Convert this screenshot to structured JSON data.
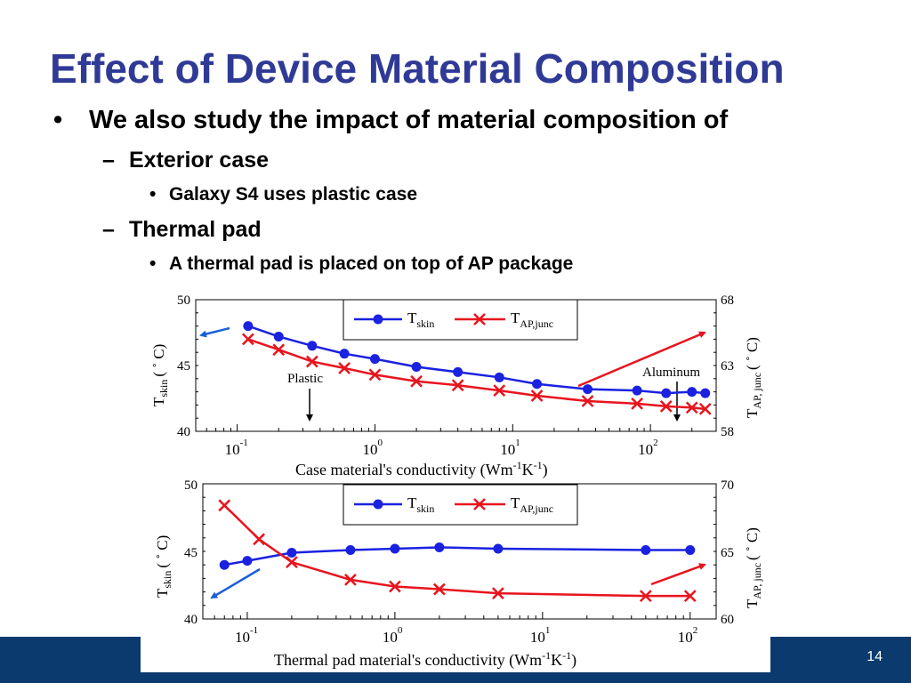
{
  "slide": {
    "title": "Effect of Device Material Composition",
    "bullet_main": "We also study the impact of material composition of",
    "sub1": "Exterior case",
    "sub1_item": "Galaxy S4 uses plastic case",
    "sub2": "Thermal pad",
    "sub2_item": "A thermal pad is placed on top of AP package",
    "page_number": "14"
  },
  "colors": {
    "title": "#2f3a96",
    "footer": "#0b3a6e",
    "tskin": "#1a22e0",
    "tap": "#e8141e",
    "arrow_blue": "#1a5fd6",
    "arrow_red": "#e8141e"
  },
  "chart_data": [
    {
      "type": "line",
      "xscale": "log",
      "xlim": [
        0.05,
        300
      ],
      "xticks": [
        {
          "base": "10",
          "exp": "-1"
        },
        {
          "base": "10",
          "exp": "0"
        },
        {
          "base": "10",
          "exp": "1"
        },
        {
          "base": "10",
          "exp": "2"
        }
      ],
      "xlabel": "Case material's conductivity (Wm",
      "xlabel_exp1": "-1",
      "xlabel_mid": "K",
      "xlabel_exp2": "-1",
      "xlabel_end": ")",
      "ylabel_left": "T",
      "ylabel_left_sub": "skin",
      "ylabel_left_unit": "( ˚ C)",
      "ylabel_right": "T",
      "ylabel_right_sub": "AP, junc",
      "ylabel_right_unit": "( ˚ C)",
      "ylim_left": [
        40,
        50
      ],
      "ylim_right": [
        58,
        68
      ],
      "yticks_left": [
        "50",
        "45",
        "40"
      ],
      "yticks_right": [
        "68",
        "63",
        "58"
      ],
      "series": [
        {
          "name": "T",
          "sub": "skin",
          "axis": "left",
          "marker": "circle",
          "x": [
            0.12,
            0.2,
            0.35,
            0.6,
            1,
            2,
            4,
            8,
            15,
            35,
            80,
            130,
            200,
            250
          ],
          "values": [
            48.0,
            47.2,
            46.5,
            45.9,
            45.5,
            44.9,
            44.5,
            44.1,
            43.6,
            43.2,
            43.1,
            42.9,
            43.0,
            42.9
          ]
        },
        {
          "name": "T",
          "sub": "AP,junc",
          "axis": "right",
          "marker": "x",
          "x": [
            0.12,
            0.2,
            0.35,
            0.6,
            1,
            2,
            4,
            8,
            15,
            35,
            80,
            130,
            200,
            250
          ],
          "values": [
            65.0,
            64.2,
            63.3,
            62.8,
            62.3,
            61.8,
            61.5,
            61.1,
            60.7,
            60.3,
            60.1,
            59.9,
            59.8,
            59.7
          ]
        }
      ],
      "annotations": [
        "Plastic",
        "Aluminum"
      ]
    },
    {
      "type": "line",
      "xscale": "log",
      "xlim": [
        0.05,
        150
      ],
      "xticks": [
        {
          "base": "10",
          "exp": "-1"
        },
        {
          "base": "10",
          "exp": "0"
        },
        {
          "base": "10",
          "exp": "1"
        },
        {
          "base": "10",
          "exp": "2"
        }
      ],
      "xlabel": "Thermal pad material's conductivity (Wm",
      "xlabel_exp1": "-1",
      "xlabel_mid": "K",
      "xlabel_exp2": "-1",
      "xlabel_end": ")",
      "ylabel_left": "T",
      "ylabel_left_sub": "skin",
      "ylabel_left_unit": "( ˚ C)",
      "ylabel_right": "T",
      "ylabel_right_sub": "AP, junc",
      "ylabel_right_unit": "( ˚ C)",
      "ylim_left": [
        40,
        50
      ],
      "ylim_right": [
        60,
        70
      ],
      "yticks_left": [
        "50",
        "45",
        "40"
      ],
      "yticks_right": [
        "70",
        "65",
        "60"
      ],
      "series": [
        {
          "name": "T",
          "sub": "skin",
          "axis": "left",
          "marker": "circle",
          "x": [
            0.07,
            0.1,
            0.2,
            0.5,
            1,
            2,
            5,
            50,
            100
          ],
          "values": [
            44.0,
            44.3,
            44.9,
            45.1,
            45.2,
            45.3,
            45.2,
            45.1,
            45.1
          ]
        },
        {
          "name": "T",
          "sub": "AP,junc",
          "axis": "right",
          "marker": "x",
          "x": [
            0.07,
            0.12,
            0.2,
            0.5,
            1,
            2,
            5,
            50,
            100
          ],
          "values": [
            68.4,
            65.9,
            64.2,
            62.9,
            62.4,
            62.2,
            61.9,
            61.7,
            61.7
          ]
        }
      ],
      "annotations": []
    }
  ]
}
